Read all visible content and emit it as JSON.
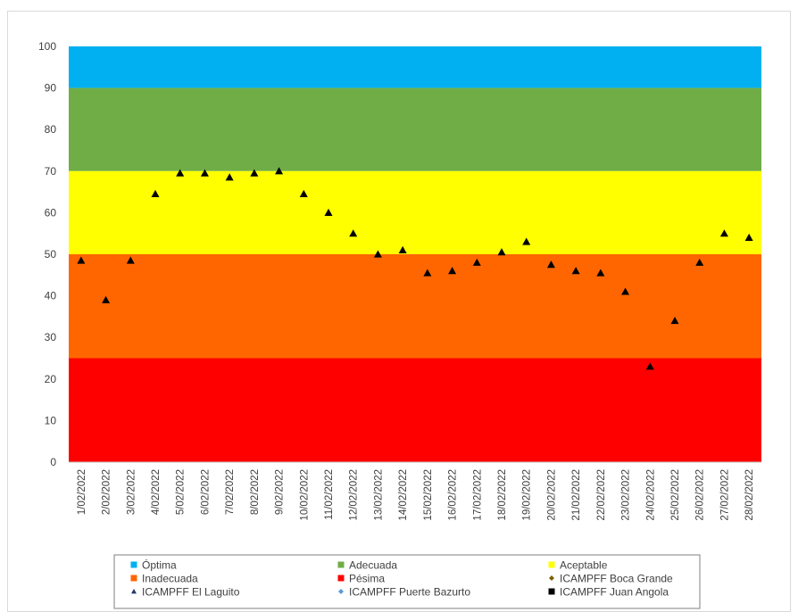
{
  "chart_data": {
    "type": "scatter",
    "ylim": [
      0,
      100
    ],
    "yticks": [
      0,
      10,
      20,
      30,
      40,
      50,
      60,
      70,
      80,
      90,
      100
    ],
    "grid": false,
    "legend_position": "bottom",
    "bands": [
      {
        "name": "Óptima",
        "from": 90,
        "to": 100,
        "color": "#00b0f0"
      },
      {
        "name": "Adecuada",
        "from": 70,
        "to": 90,
        "color": "#70ad47"
      },
      {
        "name": "Aceptable",
        "from": 50,
        "to": 70,
        "color": "#ffff00"
      },
      {
        "name": "Inadecuada",
        "from": 25,
        "to": 50,
        "color": "#ff6600"
      },
      {
        "name": "Pésima",
        "from": 0,
        "to": 25,
        "color": "#ff0000"
      }
    ],
    "categories": [
      "1/02/2022",
      "2/02/2022",
      "3/02/2022",
      "4/02/2022",
      "5/02/2022",
      "6/02/2022",
      "7/02/2022",
      "8/02/2022",
      "9/02/2022",
      "10/02/2022",
      "11/02/2022",
      "12/02/2022",
      "13/02/2022",
      "14/02/2022",
      "15/02/2022",
      "16/02/2022",
      "17/02/2022",
      "18/02/2022",
      "19/02/2022",
      "20/02/2022",
      "21/02/2022",
      "22/02/2022",
      "23/02/2022",
      "24/02/2022",
      "25/02/2022",
      "26/02/2022",
      "27/02/2022",
      "28/02/2022"
    ],
    "series": [
      {
        "name": "ICAMPFF Boca Grande",
        "marker": "diamond",
        "color": "#7f6000",
        "values": []
      },
      {
        "name": "ICAMPFF El Laguito",
        "marker": "triangle",
        "color": "#000000",
        "values": [
          48.5,
          39,
          48.5,
          64.5,
          69.5,
          69.5,
          68.5,
          69.5,
          70,
          64.5,
          60,
          55,
          50,
          51,
          45.5,
          46,
          48,
          50.5,
          53,
          47.5,
          46,
          45.5,
          41,
          23,
          34,
          48,
          55,
          54
        ]
      },
      {
        "name": "ICAMPFF  Puerte Bazurto",
        "marker": "diamond",
        "color": "#5b9bd5",
        "values": []
      },
      {
        "name": "ICAMPFF  Juan Angola",
        "marker": "square",
        "color": "#000000",
        "values": []
      }
    ],
    "legend": [
      {
        "label": "Óptima",
        "symbol": "square",
        "color": "#00b0f0"
      },
      {
        "label": "Adecuada",
        "symbol": "square",
        "color": "#70ad47"
      },
      {
        "label": "Aceptable",
        "symbol": "square",
        "color": "#ffff00"
      },
      {
        "label": "Inadecuada",
        "symbol": "square",
        "color": "#ff6600"
      },
      {
        "label": "Pésima",
        "symbol": "square",
        "color": "#ff0000"
      },
      {
        "label": "ICAMPFF Boca Grande",
        "symbol": "diamond",
        "color": "#7f6000"
      },
      {
        "label": "ICAMPFF El Laguito",
        "symbol": "triangle",
        "color": "#1f3864"
      },
      {
        "label": "ICAMPFF  Puerte Bazurto",
        "symbol": "diamond",
        "color": "#5b9bd5"
      },
      {
        "label": "ICAMPFF  Juan Angola",
        "symbol": "square",
        "color": "#000000"
      }
    ]
  }
}
